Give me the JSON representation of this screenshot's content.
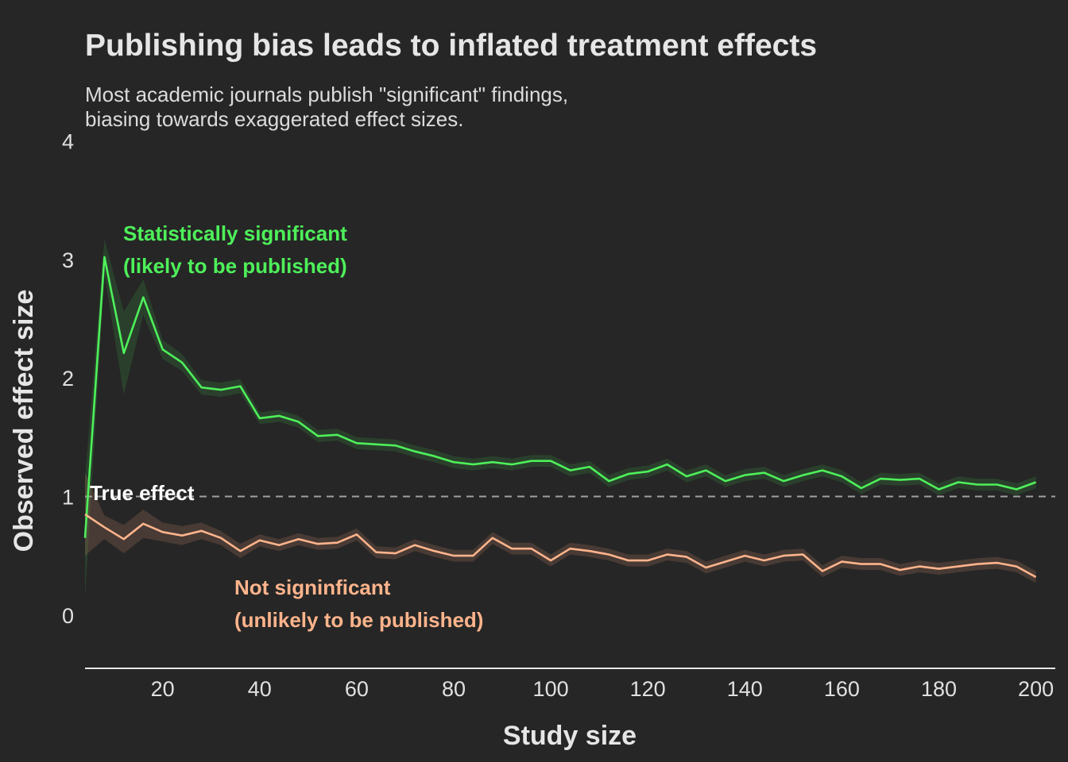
{
  "title": "Publishing bias leads to inflated treatment effects",
  "subtitle": {
    "line1": "Most academic journals publish \"significant\" findings,",
    "line2": "biasing towards exaggerated effect sizes."
  },
  "colors": {
    "background": "#262626",
    "significant": "#4ef05a",
    "not_significant": "#ffb48c",
    "true_effect": "#a0a0a0",
    "text": "#e6e6e6"
  },
  "annotations": {
    "significant_line1": "Statistically significant",
    "significant_line2": "(likely to be published)",
    "not_significant_line1": "Not signinficant",
    "not_significant_line2": "(unlikely to be published)",
    "true_effect": "True effect"
  },
  "chart_data": {
    "type": "line",
    "xlabel": "Study size",
    "ylabel": "Observed effect size",
    "xlim": [
      4,
      204
    ],
    "ylim": [
      -0.45,
      4.05
    ],
    "x_ticks": [
      20,
      40,
      60,
      80,
      100,
      120,
      140,
      160,
      180,
      200
    ],
    "y_ticks": [
      0,
      1,
      2,
      3,
      4
    ],
    "grid": false,
    "reference_line": {
      "y": 1,
      "label": "True effect",
      "style": "dashed"
    },
    "x": [
      4,
      8,
      12,
      16,
      20,
      24,
      28,
      32,
      36,
      40,
      44,
      48,
      52,
      56,
      60,
      64,
      68,
      72,
      76,
      80,
      84,
      88,
      92,
      96,
      100,
      104,
      108,
      112,
      116,
      120,
      124,
      128,
      132,
      136,
      140,
      144,
      148,
      152,
      156,
      160,
      164,
      168,
      172,
      176,
      180,
      184,
      188,
      192,
      196,
      200
    ],
    "series": [
      {
        "name": "Statistically significant",
        "values": [
          0.65,
          3.02,
          2.21,
          2.68,
          2.24,
          2.13,
          1.92,
          1.9,
          1.93,
          1.66,
          1.68,
          1.63,
          1.51,
          1.52,
          1.45,
          1.44,
          1.43,
          1.38,
          1.34,
          1.29,
          1.27,
          1.29,
          1.27,
          1.3,
          1.3,
          1.22,
          1.25,
          1.13,
          1.19,
          1.21,
          1.27,
          1.17,
          1.22,
          1.13,
          1.18,
          1.2,
          1.13,
          1.18,
          1.22,
          1.17,
          1.07,
          1.15,
          1.14,
          1.15,
          1.06,
          1.12,
          1.1,
          1.1,
          1.06,
          1.12
        ],
        "band_half_width": [
          0.5,
          0.15,
          0.35,
          0.15,
          0.08,
          0.07,
          0.06,
          0.06,
          0.06,
          0.05,
          0.05,
          0.05,
          0.05,
          0.05,
          0.05,
          0.05,
          0.05,
          0.05,
          0.05,
          0.05,
          0.05,
          0.05,
          0.05,
          0.05,
          0.05,
          0.05,
          0.05,
          0.05,
          0.05,
          0.05,
          0.05,
          0.05,
          0.05,
          0.05,
          0.05,
          0.05,
          0.05,
          0.05,
          0.05,
          0.05,
          0.05,
          0.05,
          0.05,
          0.05,
          0.05,
          0.05,
          0.05,
          0.05,
          0.05,
          0.05
        ]
      },
      {
        "name": "Not signinficant",
        "values": [
          0.85,
          0.74,
          0.64,
          0.77,
          0.7,
          0.67,
          0.71,
          0.65,
          0.54,
          0.63,
          0.59,
          0.64,
          0.6,
          0.61,
          0.68,
          0.53,
          0.52,
          0.59,
          0.54,
          0.5,
          0.5,
          0.65,
          0.56,
          0.56,
          0.46,
          0.56,
          0.54,
          0.51,
          0.46,
          0.46,
          0.51,
          0.49,
          0.4,
          0.45,
          0.5,
          0.46,
          0.5,
          0.51,
          0.37,
          0.45,
          0.43,
          0.43,
          0.38,
          0.41,
          0.39,
          0.41,
          0.43,
          0.44,
          0.41,
          0.32
        ],
        "band_half_width": [
          0.35,
          0.1,
          0.12,
          0.12,
          0.08,
          0.08,
          0.07,
          0.06,
          0.06,
          0.05,
          0.05,
          0.05,
          0.05,
          0.05,
          0.05,
          0.05,
          0.05,
          0.05,
          0.05,
          0.05,
          0.05,
          0.05,
          0.05,
          0.05,
          0.05,
          0.05,
          0.05,
          0.05,
          0.05,
          0.05,
          0.05,
          0.05,
          0.05,
          0.05,
          0.05,
          0.05,
          0.05,
          0.05,
          0.05,
          0.05,
          0.05,
          0.05,
          0.05,
          0.05,
          0.05,
          0.05,
          0.05,
          0.05,
          0.05,
          0.05
        ]
      }
    ]
  }
}
